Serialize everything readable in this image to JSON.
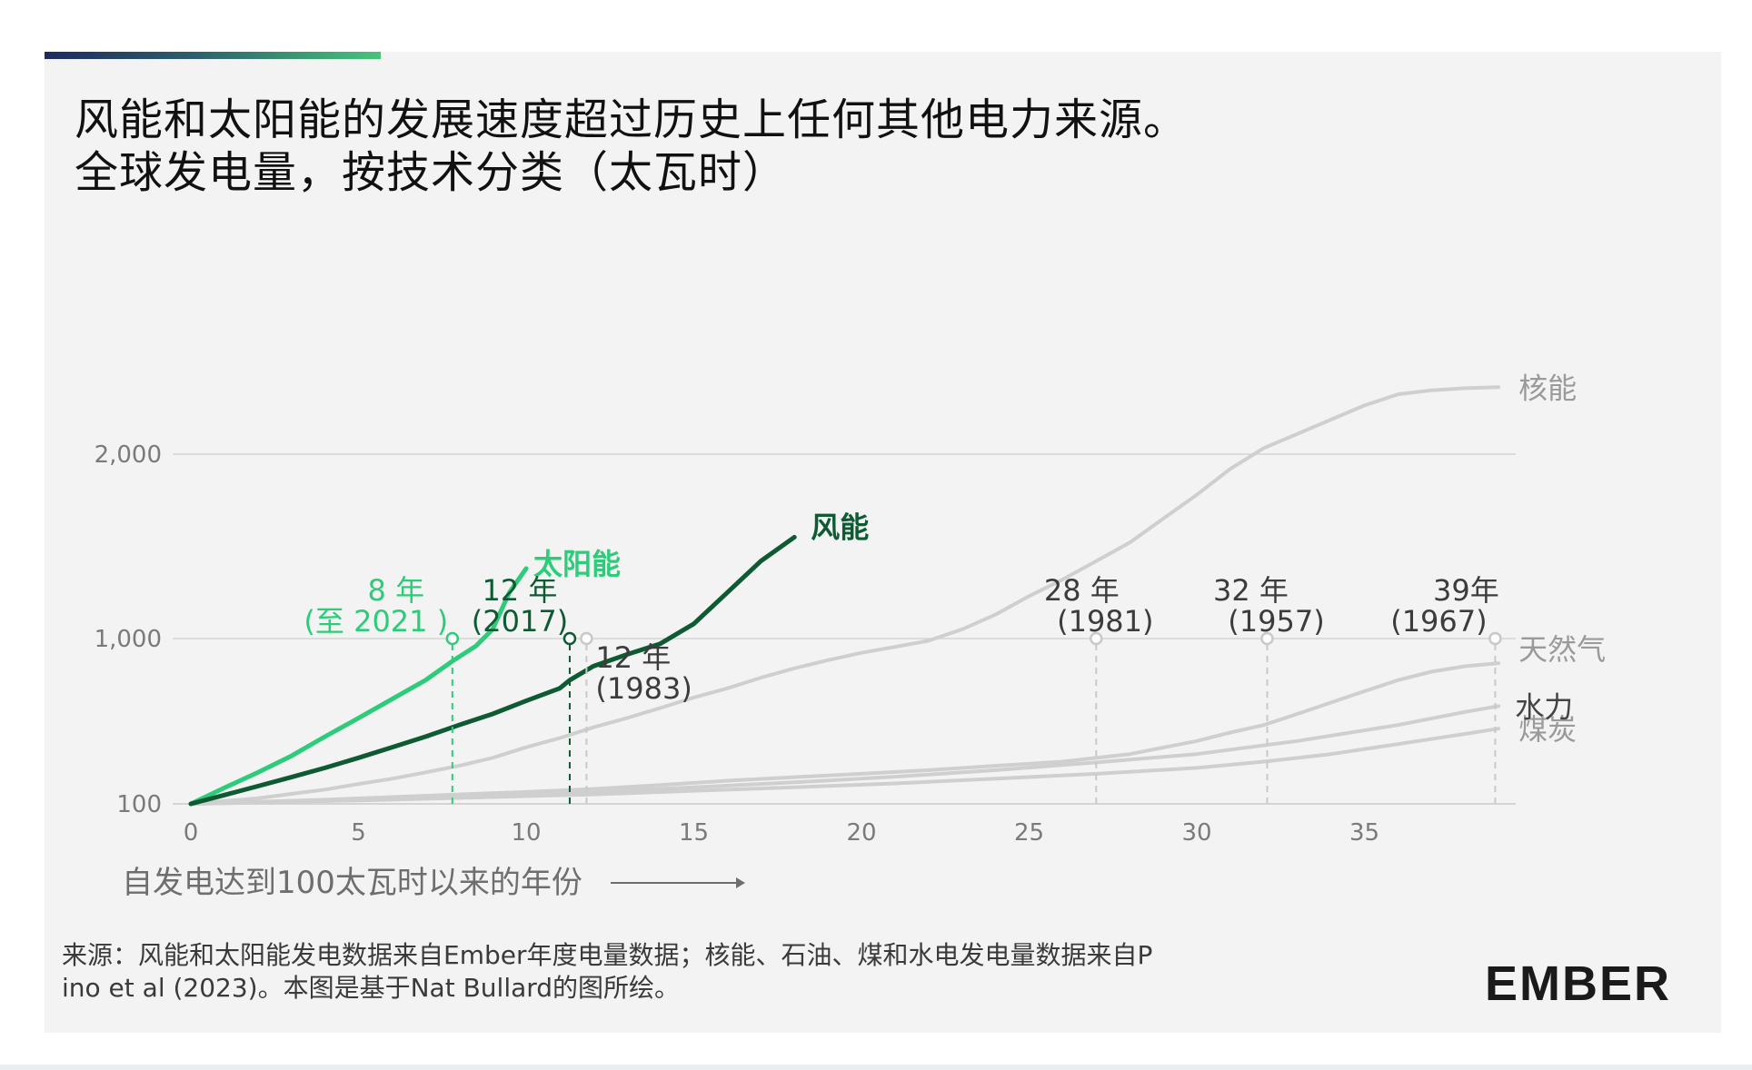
{
  "title_line1": "风能和太阳能的发展速度超过历史上任何其他电力来源。",
  "title_line2": "全球发电量，按技术分类（太瓦时）",
  "x_axis_label": "自发电达到100太瓦时以来的年份",
  "source_line1": "来源：风能和太阳能发电数据来自Ember年度电量数据；核能、石油、煤和水电发电量数据来自P",
  "source_line2": "ino et al (2023)。本图是基于Nat Bullard的图所绘。",
  "logo": "EMBER",
  "colors": {
    "solar": "#2ecc7a",
    "wind": "#0d5a33",
    "other": "#cfcfcf",
    "grid": "#d4d4d4",
    "axis_text": "#7a7a7a"
  },
  "chart_data": {
    "type": "line",
    "title": "全球发电量，按技术分类（太瓦时）",
    "xlabel": "自发电达到100太瓦时以来的年份",
    "ylabel": "",
    "xlim": [
      0,
      40
    ],
    "y_scale": "log",
    "ylim": [
      100,
      5200
    ],
    "x_ticks": [
      0,
      5,
      10,
      15,
      20,
      25,
      30,
      35
    ],
    "y_ticks": [
      {
        "value": 100,
        "label": "100"
      },
      {
        "value": 1000,
        "label": "1,000"
      },
      {
        "value": 2000,
        "label": "2,000"
      }
    ],
    "series": [
      {
        "name": "核能",
        "key": "nuclear",
        "highlight": false,
        "points": [
          [
            0,
            100
          ],
          [
            1,
            104
          ],
          [
            2,
            108
          ],
          [
            3,
            115
          ],
          [
            4,
            122
          ],
          [
            5,
            132
          ],
          [
            6,
            142
          ],
          [
            7,
            155
          ],
          [
            8,
            170
          ],
          [
            9,
            190
          ],
          [
            10,
            220
          ],
          [
            11,
            250
          ],
          [
            12,
            290
          ],
          [
            13,
            330
          ],
          [
            14,
            380
          ],
          [
            15,
            440
          ],
          [
            16,
            500
          ],
          [
            17,
            580
          ],
          [
            18,
            660
          ],
          [
            19,
            740
          ],
          [
            20,
            820
          ],
          [
            21,
            890
          ],
          [
            22,
            970
          ],
          [
            23,
            1050
          ],
          [
            24,
            1130
          ],
          [
            25,
            1230
          ],
          [
            26,
            1320
          ],
          [
            27,
            1420
          ],
          [
            28,
            1520
          ],
          [
            29,
            1650
          ],
          [
            30,
            1780
          ],
          [
            31,
            1920
          ],
          [
            32,
            2060
          ],
          [
            33,
            2200
          ],
          [
            34,
            2340
          ],
          [
            35,
            2480
          ],
          [
            36,
            2590
          ],
          [
            37,
            2630
          ],
          [
            38,
            2650
          ],
          [
            39,
            2660
          ]
        ]
      },
      {
        "name": "天然气",
        "key": "gas",
        "highlight": false,
        "points": [
          [
            0,
            100
          ],
          [
            2,
            103
          ],
          [
            4,
            106
          ],
          [
            6,
            110
          ],
          [
            8,
            114
          ],
          [
            10,
            118
          ],
          [
            12,
            123
          ],
          [
            14,
            130
          ],
          [
            16,
            138
          ],
          [
            18,
            145
          ],
          [
            20,
            152
          ],
          [
            22,
            160
          ],
          [
            24,
            170
          ],
          [
            26,
            180
          ],
          [
            28,
            200
          ],
          [
            30,
            240
          ],
          [
            31,
            270
          ],
          [
            32,
            300
          ],
          [
            33,
            350
          ],
          [
            34,
            410
          ],
          [
            35,
            480
          ],
          [
            36,
            560
          ],
          [
            37,
            630
          ],
          [
            38,
            680
          ],
          [
            39,
            710
          ]
        ]
      },
      {
        "name": "煤炭",
        "key": "coal",
        "highlight": false,
        "points": [
          [
            0,
            100
          ],
          [
            3,
            103
          ],
          [
            6,
            106
          ],
          [
            9,
            110
          ],
          [
            12,
            114
          ],
          [
            15,
            120
          ],
          [
            18,
            126
          ],
          [
            21,
            133
          ],
          [
            24,
            142
          ],
          [
            27,
            152
          ],
          [
            30,
            165
          ],
          [
            32,
            180
          ],
          [
            34,
            200
          ],
          [
            36,
            230
          ],
          [
            38,
            265
          ],
          [
            39,
            285
          ]
        ]
      },
      {
        "name": "水力",
        "key": "hydro",
        "highlight": false,
        "points": [
          [
            0,
            100
          ],
          [
            3,
            103
          ],
          [
            6,
            107
          ],
          [
            9,
            112
          ],
          [
            12,
            118
          ],
          [
            15,
            126
          ],
          [
            18,
            135
          ],
          [
            21,
            146
          ],
          [
            24,
            160
          ],
          [
            27,
            178
          ],
          [
            30,
            200
          ],
          [
            33,
            240
          ],
          [
            36,
            300
          ],
          [
            38,
            360
          ],
          [
            39,
            390
          ]
        ]
      },
      {
        "name": "太阳能",
        "key": "solar",
        "highlight": true,
        "points": [
          [
            0,
            100
          ],
          [
            1,
            125
          ],
          [
            2,
            155
          ],
          [
            3,
            195
          ],
          [
            4,
            255
          ],
          [
            5,
            330
          ],
          [
            6,
            430
          ],
          [
            7,
            560
          ],
          [
            7.8,
            730
          ],
          [
            8.5,
            900
          ],
          [
            9,
            1050
          ],
          [
            9.5,
            1250
          ],
          [
            10,
            1380
          ]
        ]
      },
      {
        "name": "风能",
        "key": "wind",
        "highlight": true,
        "points": [
          [
            0,
            100
          ],
          [
            1,
            113
          ],
          [
            2,
            128
          ],
          [
            3,
            145
          ],
          [
            4,
            165
          ],
          [
            5,
            190
          ],
          [
            6,
            220
          ],
          [
            7,
            255
          ],
          [
            8,
            300
          ],
          [
            9,
            350
          ],
          [
            10,
            420
          ],
          [
            11,
            500
          ],
          [
            11.3,
            560
          ],
          [
            12,
            680
          ],
          [
            13,
            800
          ],
          [
            14,
            930
          ],
          [
            15,
            1080
          ],
          [
            16,
            1250
          ],
          [
            17,
            1420
          ],
          [
            18,
            1550
          ]
        ]
      }
    ],
    "milestones": [
      {
        "series": "solar",
        "x": 7.8,
        "years_label": "8 年",
        "year_label": "(至 2021 )"
      },
      {
        "series": "wind",
        "x": 11.3,
        "years_label": "12 年",
        "year_label": "(2017)"
      },
      {
        "series": "nuclear",
        "x": 11.8,
        "years_label": "12 年",
        "year_label": "(1983)"
      },
      {
        "series": "gas",
        "x": 27,
        "years_label": "28 年",
        "year_label": "(1981)"
      },
      {
        "series": "coal",
        "x": 32.1,
        "years_label": "32 年",
        "year_label": "(1957)"
      },
      {
        "series": "hydro",
        "x": 38.9,
        "years_label": "39年",
        "year_label": "(1967)"
      }
    ]
  }
}
